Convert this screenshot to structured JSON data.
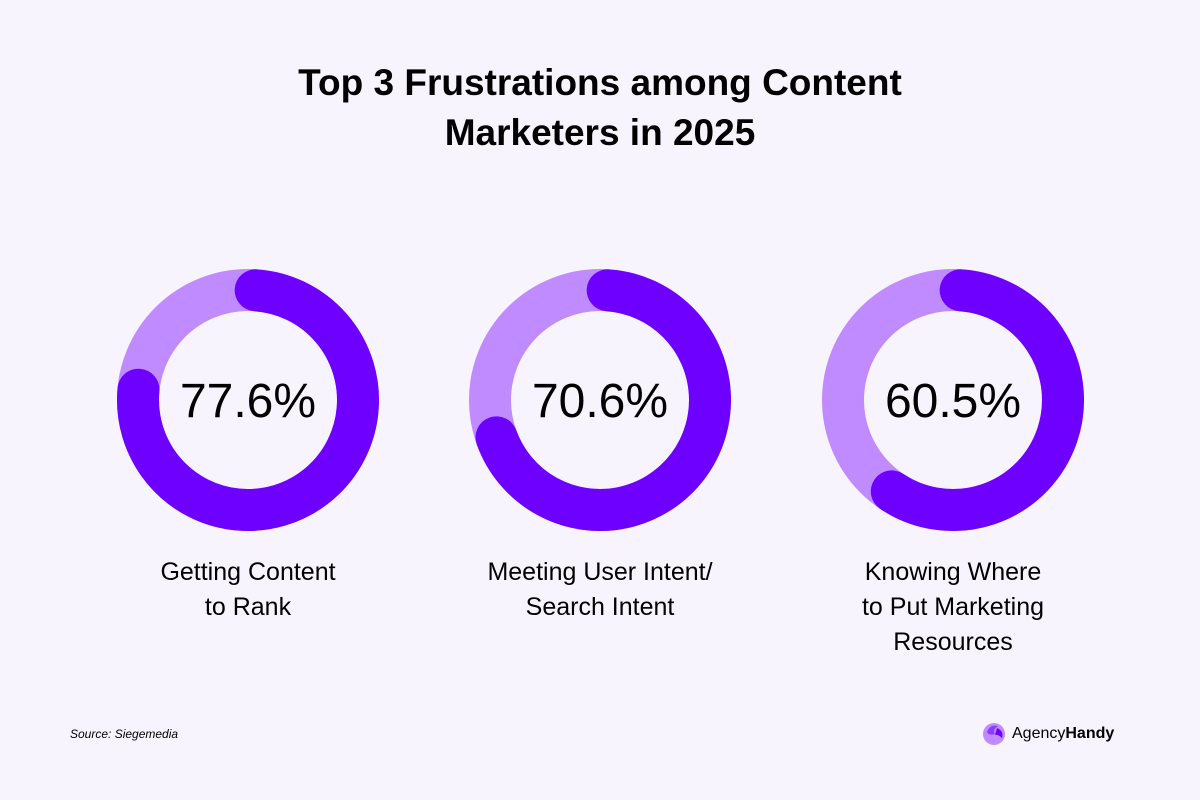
{
  "chart_data": {
    "type": "pie",
    "subtype": "donut",
    "title": [
      "Top 3 Frustrations among Content",
      "Marketers in 2025"
    ],
    "unit": "%",
    "max": 100,
    "items": [
      {
        "label_lines": [
          "Getting Content",
          "to Rank"
        ],
        "value": 77.6,
        "display": "77.6%"
      },
      {
        "label_lines": [
          "Meeting User Intent/",
          "Search Intent"
        ],
        "value": 70.6,
        "display": "70.6%"
      },
      {
        "label_lines": [
          "Knowing Where",
          "to Put Marketing",
          "Resources"
        ],
        "value": 60.5,
        "display": "60.5%"
      }
    ],
    "colors": {
      "value": "#6E00FF",
      "remainder": "#BF8BFF",
      "background": "#F7F4FD"
    }
  },
  "source": "Source: Siegemedia",
  "logo": {
    "part1": "Agency",
    "part2": "Handy"
  }
}
